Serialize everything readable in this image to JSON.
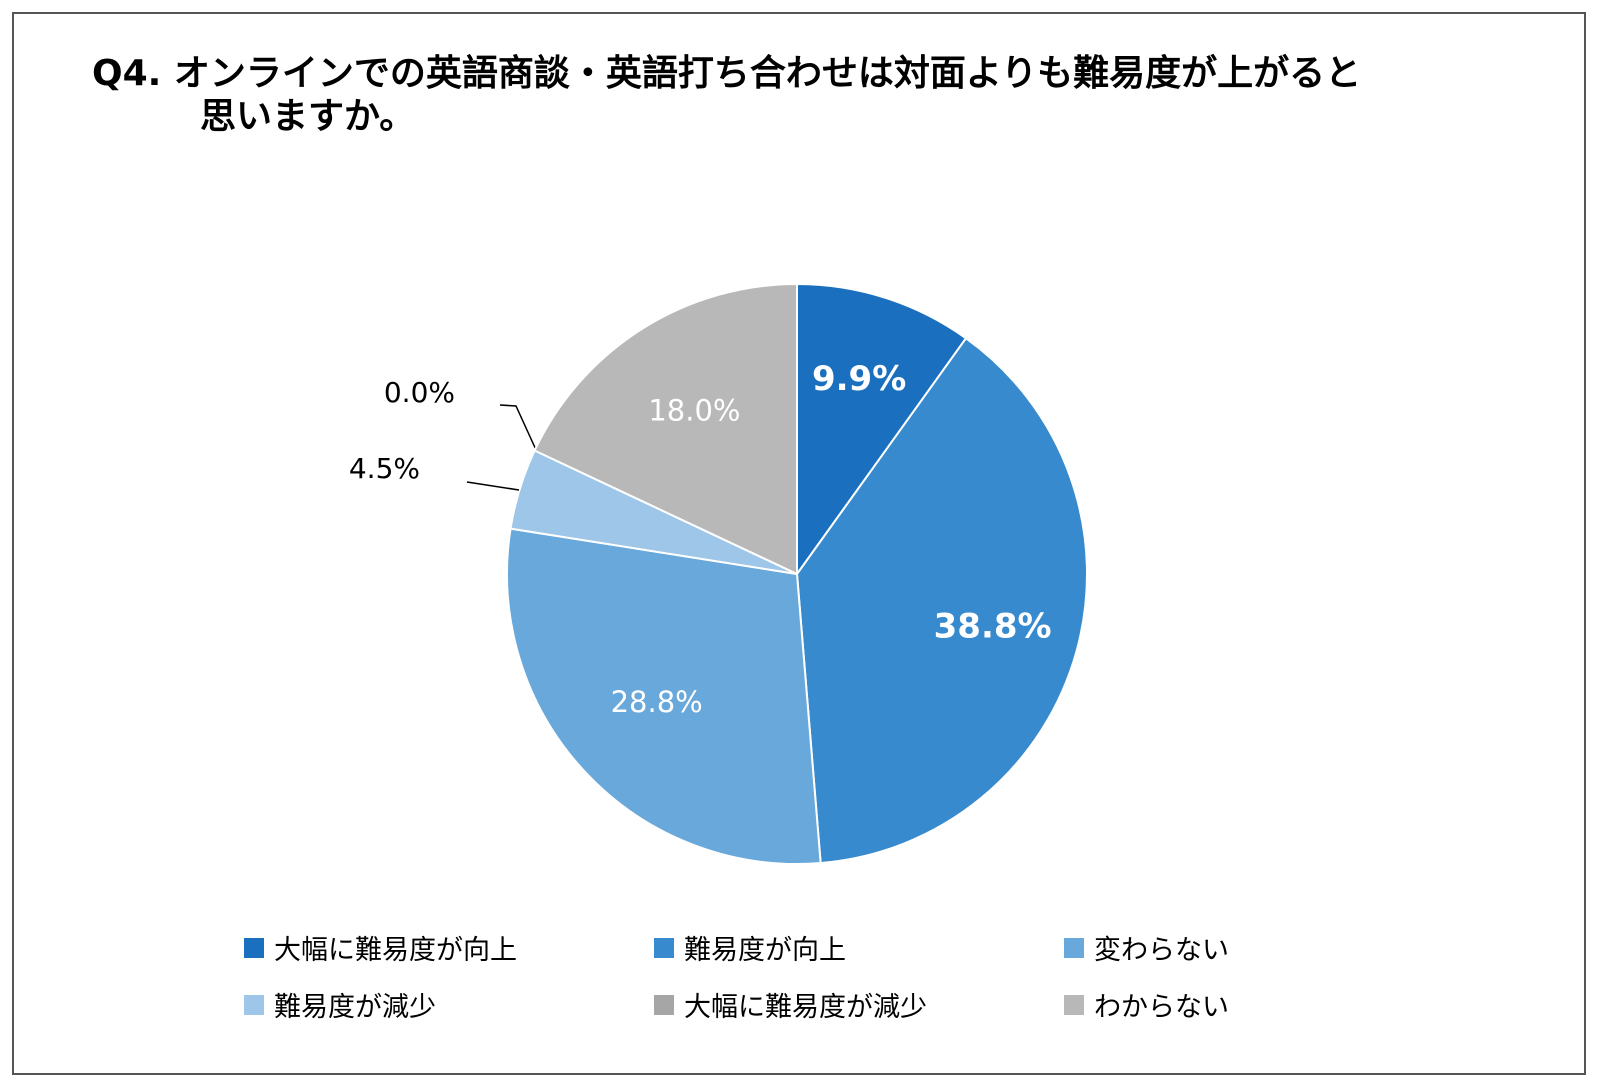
{
  "chart_title": {
    "line1": "Q4.  オンラインでの英語商談・英語打ち合わせは対面よりも難易度が上がると",
    "line2": "思いますか。"
  },
  "chart_data": {
    "type": "pie",
    "title": "Q4.  オンラインでの英語商談・英語打ち合わせは対面よりも難易度が上がると思いますか。",
    "start_angle_deg": 0,
    "direction": "clockwise",
    "legend_position": "bottom",
    "slices": [
      {
        "label": "大幅に難易度が向上",
        "value": 9.9,
        "display": "9.9%",
        "color": "#1A6FBF",
        "label_color": "#ffffff",
        "label_bold": true,
        "label_outside": false
      },
      {
        "label": "難易度が向上",
        "value": 38.8,
        "display": "38.8%",
        "color": "#378ACE",
        "label_color": "#ffffff",
        "label_bold": true,
        "label_outside": false
      },
      {
        "label": "変わらない",
        "value": 28.8,
        "display": "28.8%",
        "color": "#69A8DA",
        "label_color": "#ffffff",
        "label_bold": false,
        "label_outside": false
      },
      {
        "label": "難易度が減少",
        "value": 4.5,
        "display": "4.5%",
        "color": "#9DC6E8",
        "label_color": "#000000",
        "label_bold": false,
        "label_outside": true
      },
      {
        "label": "大幅に難易度が減少",
        "value": 0.0,
        "display": "0.0%",
        "color": "#A6A6A6",
        "label_color": "#000000",
        "label_bold": false,
        "label_outside": true
      },
      {
        "label": "わからない",
        "value": 18.0,
        "display": "18.0%",
        "color": "#B8B8B8",
        "label_color": "#ffffff",
        "label_bold": false,
        "label_outside": false
      }
    ]
  }
}
